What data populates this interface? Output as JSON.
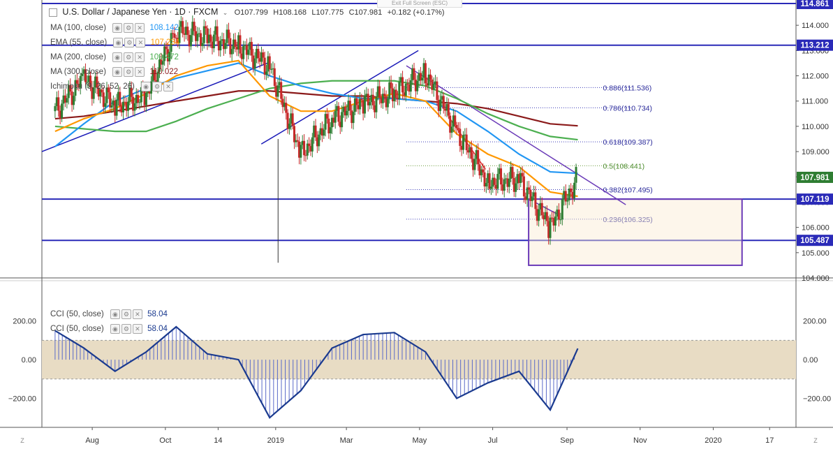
{
  "header": {
    "symbol": "U.S. Dollar / Japanese Yen · 1D · FXCM",
    "open": "O107.799",
    "high": "H108.168",
    "low": "L107.775",
    "close": "C107.981",
    "change": "+0.182 (+0.17%)",
    "exit_fullscreen": "Exit Full Screen (ESC)"
  },
  "indicators": [
    {
      "label": "MA (100, close)",
      "value": "108.142",
      "color": "#2196f3"
    },
    {
      "label": "EMA (55, close)",
      "value": "107.234",
      "color": "#ff9800"
    },
    {
      "label": "MA (200, close)",
      "value": "109.472",
      "color": "#4caf50"
    },
    {
      "label": "MA (300, close)",
      "value": "110.022",
      "color": "#8b1a1a"
    },
    {
      "label": "Ichimoku (9, 26, 52, 26)",
      "value": "",
      "color": "#999999"
    }
  ],
  "lower_indicators": [
    {
      "label": "CCI (50, close)",
      "value": "58.04",
      "color": "#1a3a8f"
    },
    {
      "label": "CCI (50, close)",
      "value": "58.04",
      "color": "#1a3a8f"
    }
  ],
  "price_badges": [
    {
      "text": "114.861",
      "kind": "level"
    },
    {
      "text": "113.212",
      "kind": "level"
    },
    {
      "text": "107.981",
      "kind": "current"
    },
    {
      "text": "107.119",
      "kind": "level"
    },
    {
      "text": "105.487",
      "kind": "level"
    }
  ],
  "fib_labels": [
    "0.886(111.536)",
    "0.786(110.734)",
    "0.618(109.387)",
    "0.5(108.441)",
    "0.382(107.495)",
    "0.236(106.325)"
  ],
  "x_ticks": [
    "Aug",
    "Oct",
    "14",
    "2019",
    "Mar",
    "May",
    "Jul",
    "Sep",
    "Nov",
    "2020",
    "17"
  ],
  "corner_labels": {
    "left": "Z",
    "right": "Z"
  },
  "chart_data": [
    {
      "type": "line",
      "name_note": "USDJPY daily candles with moving averages",
      "ylim": [
        104.0,
        115.0
      ],
      "y_ticks": [
        104,
        105,
        106,
        107,
        108,
        109,
        110,
        111,
        112,
        113,
        114
      ],
      "y_tick_labels": [
        "104.000",
        "105.000",
        "106.000",
        "107.000",
        "108.000",
        "109.000",
        "110.000",
        "111.000",
        "112.000",
        "113.000",
        "114.000"
      ],
      "x_dates": [
        "2018-07-01",
        "2018-07-25",
        "2018-08-20",
        "2018-09-15",
        "2018-10-10",
        "2018-11-05",
        "2018-12-01",
        "2018-12-27",
        "2019-01-22",
        "2019-02-17",
        "2019-03-15",
        "2019-04-10",
        "2019-05-06",
        "2019-06-01",
        "2019-06-27",
        "2019-07-23",
        "2019-08-18",
        "2019-09-10"
      ],
      "price": [
        110.6,
        111.9,
        110.8,
        111.2,
        113.8,
        113.5,
        113.2,
        112.4,
        108.9,
        110.3,
        110.9,
        111.3,
        112.1,
        109.8,
        107.8,
        107.9,
        106.0,
        107.98
      ],
      "ma100": [
        109.2,
        110.1,
        111.0,
        111.5,
        111.9,
        112.2,
        112.5,
        112.0,
        111.6,
        111.3,
        111.1,
        111.1,
        111.0,
        110.6,
        109.8,
        108.9,
        108.2,
        108.14
      ],
      "ema55": [
        109.8,
        110.3,
        110.7,
        111.3,
        112.0,
        112.4,
        112.6,
        111.2,
        110.6,
        110.6,
        111.0,
        111.3,
        111.0,
        109.7,
        108.9,
        108.4,
        107.4,
        107.23
      ],
      "ma200": [
        110.0,
        109.9,
        109.8,
        109.8,
        110.2,
        110.7,
        111.1,
        111.5,
        111.7,
        111.8,
        111.8,
        111.8,
        111.6,
        111.1,
        110.5,
        110.0,
        109.6,
        109.47
      ],
      "ma300": [
        110.3,
        110.4,
        110.6,
        110.8,
        111.0,
        111.2,
        111.4,
        111.4,
        111.3,
        111.2,
        111.2,
        111.1,
        111.0,
        110.9,
        110.7,
        110.4,
        110.1,
        110.02
      ],
      "horizontal_levels": [
        114.861,
        113.212,
        107.119,
        105.487
      ],
      "fib_levels": [
        111.536,
        110.734,
        109.387,
        108.441,
        107.495,
        106.325
      ]
    },
    {
      "type": "bar",
      "name_note": "CCI (50, close)",
      "ylim": [
        -350,
        300
      ],
      "y_ticks": [
        200,
        0,
        -200
      ],
      "y_tick_labels": [
        "200.00",
        "0.00",
        "−200.00"
      ],
      "band": [
        -100,
        100
      ],
      "x_dates": [
        "2018-07-01",
        "2018-07-25",
        "2018-08-20",
        "2018-09-15",
        "2018-10-10",
        "2018-11-05",
        "2018-12-01",
        "2018-12-27",
        "2019-01-22",
        "2019-02-17",
        "2019-03-15",
        "2019-04-10",
        "2019-05-06",
        "2019-06-01",
        "2019-06-27",
        "2019-07-23",
        "2019-08-18",
        "2019-09-10"
      ],
      "values": [
        150,
        60,
        -60,
        40,
        170,
        30,
        0,
        -300,
        -160,
        60,
        130,
        140,
        40,
        -200,
        -120,
        -60,
        -260,
        58
      ]
    }
  ]
}
